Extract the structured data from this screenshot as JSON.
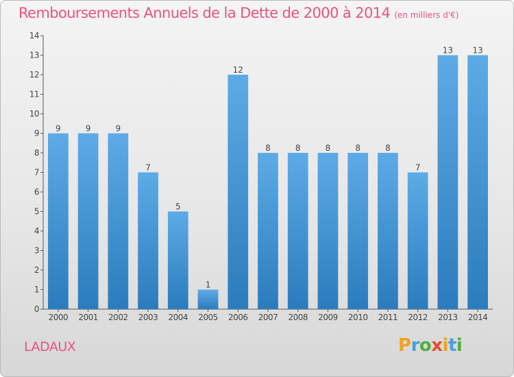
{
  "title": "Remboursements Annuels de la Dette de 2000 à 2014",
  "unit_label": "(en milliers d'€)",
  "commune": "LADAUX",
  "brand": {
    "letters": [
      {
        "ch": "P",
        "color": "#f0a21f"
      },
      {
        "ch": "r",
        "color": "#4a9edc"
      },
      {
        "ch": "o",
        "color": "#4fae43"
      },
      {
        "ch": "x",
        "color": "#ea4d2e"
      },
      {
        "ch": "i",
        "color": "#f0a21f"
      },
      {
        "ch": "t",
        "color": "#4a9edc"
      },
      {
        "ch": "i",
        "color": "#4fae43"
      }
    ]
  },
  "colors": {
    "bar_light": "#5dabe6",
    "bar_dark": "#2b7cbd",
    "accent": "#e8547b",
    "axis": "#555555"
  },
  "chart_data": {
    "type": "bar",
    "categories": [
      "2000",
      "2001",
      "2002",
      "2003",
      "2004",
      "2005",
      "2006",
      "2007",
      "2008",
      "2009",
      "2010",
      "2011",
      "2012",
      "2013",
      "2014"
    ],
    "values": [
      9,
      9,
      9,
      7,
      5,
      1,
      12,
      8,
      8,
      8,
      8,
      8,
      7,
      13,
      13
    ],
    "y_ticks": [
      {
        "v": 0,
        "label": "0"
      },
      {
        "v": 1,
        "label": "1"
      },
      {
        "v": 2,
        "label": "2"
      },
      {
        "v": 3,
        "label": "3"
      },
      {
        "v": 4,
        "label": "4"
      },
      {
        "v": 5,
        "label": "5"
      },
      {
        "v": 6,
        "label": "6"
      },
      {
        "v": 7,
        "label": "7"
      },
      {
        "v": 8,
        "label": "8"
      },
      {
        "v": 9,
        "label": "9"
      },
      {
        "v": 10,
        "label": "10"
      },
      {
        "v": 11,
        "label": "11"
      },
      {
        "v": 12,
        "label": "12"
      },
      {
        "v": 13,
        "label": "13"
      },
      {
        "v": 14,
        "label": "14"
      }
    ],
    "ylim": [
      0,
      14
    ],
    "grid": false
  }
}
